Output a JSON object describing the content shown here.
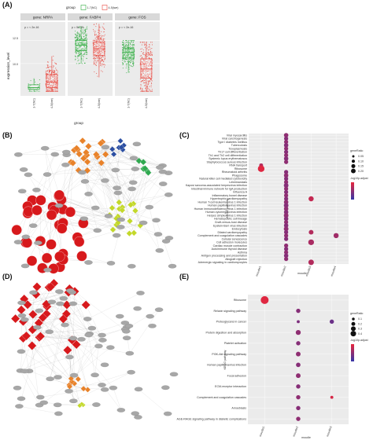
{
  "panels": {
    "A": "(A)",
    "B": "(B)",
    "C": "(C)",
    "D": "(D)",
    "E": "(E)"
  },
  "colors": {
    "group_a": "#2eaa3e",
    "group_b": "#e8453c",
    "strip_bg": "#d9d9d9",
    "panel_bg": "#ebebeb",
    "node_red": "#d7191c",
    "node_orange": "#e8822a",
    "node_blue": "#2b4ea2",
    "node_green": "#2fa84f",
    "node_yellow": "#c3d82a",
    "node_grey": "#a7a7a7",
    "ratio_high": "#e8263c",
    "ratio_low": "#3535a8"
  },
  "chart_data": [
    {
      "type": "box",
      "panel": "A",
      "legend": {
        "title": "group",
        "entries": [
          "1-7(NC)",
          "4-5(lwe)"
        ]
      },
      "ylabel": "expression_level",
      "xlabel": "group",
      "yticks": [
        "10.0",
        "12.5"
      ],
      "ylim": [
        6.5,
        14.5
      ],
      "facets": [
        {
          "title": "gene: NRPA",
          "pvalue": "p = < 2e-16",
          "categories": [
            "1-7(NC)",
            "4-5(lwe)"
          ],
          "boxes": [
            {
              "q1": 7.2,
              "median": 7.4,
              "q3": 7.7,
              "min": 7.0,
              "max": 8.4
            },
            {
              "q1": 7.4,
              "median": 8.0,
              "q3": 8.8,
              "min": 7.0,
              "max": 10.8
            }
          ]
        },
        {
          "title": "gene: FABP4",
          "pvalue": "p = 5e-05",
          "categories": [
            "1-7(NC)",
            "4-5(lwe)"
          ],
          "boxes": [
            {
              "q1": 11.4,
              "median": 12.0,
              "q3": 12.5,
              "min": 10.0,
              "max": 14.0
            },
            {
              "q1": 10.9,
              "median": 11.6,
              "q3": 12.3,
              "min": 8.5,
              "max": 14.3
            }
          ]
        },
        {
          "title": "gene: FOS",
          "pvalue": "p = < 2e-16",
          "categories": [
            "1-7(NC)",
            "4-5(lwe)"
          ],
          "boxes": [
            {
              "q1": 10.6,
              "median": 11.2,
              "q3": 11.6,
              "min": 9.0,
              "max": 12.5
            },
            {
              "q1": 8.4,
              "median": 9.4,
              "q3": 10.5,
              "min": 7.0,
              "max": 12.3
            }
          ]
        }
      ]
    },
    {
      "type": "scatter",
      "panel": "C",
      "ylabel": "KEGG pathway",
      "xlabel": "moudle",
      "categories": [
        "moudle1",
        "moudle2",
        "moudle3",
        "moudle4"
      ],
      "size_legend_title": "geneRatio",
      "size_legend": [
        "0.05",
        "0.10",
        "0.15",
        "0.20"
      ],
      "color_legend_title": "-log10p.adjust",
      "pathways": [
        "Viral myocarditis",
        "Viral carcinogenesis",
        "Type I diabetes mellitus",
        "Tuberculosis",
        "Toxoplasmosis",
        "Th17 cell differentiation",
        "Th1 and Th2 cell differentiation",
        "Systemic lupus erythematosus",
        "Staphylococcus aureus infection",
        "RNA transport",
        "Ribosome",
        "Rheumatoid arthritis",
        "Phagosome",
        "Natural killer cell mediated cytotoxicity",
        "Leishmaniasis",
        "Kaposi sarcoma-associated herpesvirus infection",
        "Intestinal immune network for IgA production",
        "Influenza A",
        "Inflammatory bowel disease",
        "Hypertrophic cardiomyopathy",
        "Human T-cell leukemia virus 1 infection",
        "Human papillomavirus infection",
        "Human immunodeficiency virus 1 infection",
        "Human cytomegalovirus infection",
        "Herpes simplex virus 1 infection",
        "Hematopoietic cell lineage",
        "Graft-versus-host disease",
        "Epstein-Barr virus infection",
        "Endocytosis",
        "Dilated cardiomyopathy",
        "Complement and coagulation cascades",
        "Cellular senescence",
        "Cell adhesion molecules",
        "Cardiac muscle contraction",
        "Autoimmune thyroid disease",
        "Asthma",
        "Antigen processing and presentation",
        "Allograft rejection",
        "Adrenergic signaling in cardiomyocytes"
      ],
      "points": [
        [
          1,
          0,
          0.09,
          0.5
        ],
        [
          1,
          1,
          0.08,
          0.45
        ],
        [
          1,
          2,
          0.08,
          0.5
        ],
        [
          1,
          3,
          0.09,
          0.45
        ],
        [
          1,
          4,
          0.08,
          0.5
        ],
        [
          1,
          5,
          0.08,
          0.45
        ],
        [
          1,
          6,
          0.08,
          0.5
        ],
        [
          1,
          7,
          0.09,
          0.45
        ],
        [
          1,
          8,
          0.08,
          0.5
        ],
        [
          0,
          9,
          0.07,
          0.7
        ],
        [
          0,
          10,
          0.2,
          0.95
        ],
        [
          1,
          11,
          0.08,
          0.45
        ],
        [
          1,
          12,
          0.09,
          0.5
        ],
        [
          1,
          13,
          0.08,
          0.45
        ],
        [
          1,
          14,
          0.08,
          0.5
        ],
        [
          1,
          15,
          0.1,
          0.45
        ],
        [
          1,
          16,
          0.08,
          0.5
        ],
        [
          1,
          17,
          0.08,
          0.45
        ],
        [
          1,
          18,
          0.08,
          0.5
        ],
        [
          1,
          19,
          0.08,
          0.45
        ],
        [
          2,
          19,
          0.12,
          0.8
        ],
        [
          1,
          20,
          0.09,
          0.5
        ],
        [
          1,
          21,
          0.1,
          0.45
        ],
        [
          1,
          22,
          0.09,
          0.5
        ],
        [
          1,
          23,
          0.09,
          0.45
        ],
        [
          1,
          24,
          0.1,
          0.5
        ],
        [
          1,
          25,
          0.09,
          0.45
        ],
        [
          1,
          26,
          0.08,
          0.5
        ],
        [
          1,
          27,
          0.09,
          0.45
        ],
        [
          1,
          28,
          0.1,
          0.5
        ],
        [
          1,
          29,
          0.08,
          0.45
        ],
        [
          2,
          29,
          0.1,
          0.7
        ],
        [
          3,
          30,
          0.12,
          0.6
        ],
        [
          1,
          30,
          0.08,
          0.5
        ],
        [
          1,
          31,
          0.08,
          0.45
        ],
        [
          2,
          32,
          0.15,
          0.65
        ],
        [
          1,
          33,
          0.08,
          0.5
        ],
        [
          1,
          34,
          0.08,
          0.45
        ],
        [
          1,
          35,
          0.08,
          0.5
        ],
        [
          1,
          36,
          0.09,
          0.45
        ],
        [
          1,
          37,
          0.08,
          0.5
        ],
        [
          2,
          38,
          0.14,
          0.7
        ]
      ]
    },
    {
      "type": "scatter",
      "panel": "E",
      "ylabel": "KEGG pathway",
      "xlabel": "moudle",
      "categories": [
        "moudle1",
        "moudle2",
        "moudle3"
      ],
      "size_legend_title": "geneRatio",
      "size_legend": [
        "0.1",
        "0.2",
        "0.3",
        "0.4"
      ],
      "color_legend_title": "-log10p.adjust",
      "pathways": [
        "Ribosome",
        "Relaxin signaling pathway",
        "Proteoglycans in cancer",
        "Protein digestion and absorption",
        "Platelet activation",
        "PI3K-Akt signaling pathway",
        "Human papillomavirus infection",
        "Focal adhesion",
        "ECM-receptor interaction",
        "Complement and coagulation cascades",
        "Amoebiasis",
        "AGE-RAGE signaling pathway in diabetic complications"
      ],
      "points": [
        [
          0,
          0,
          0.4,
          0.95
        ],
        [
          1,
          1,
          0.12,
          0.45
        ],
        [
          1,
          2,
          0.06,
          0.4
        ],
        [
          2,
          2,
          0.12,
          0.3
        ],
        [
          1,
          3,
          0.16,
          0.5
        ],
        [
          1,
          4,
          0.12,
          0.45
        ],
        [
          1,
          5,
          0.14,
          0.5
        ],
        [
          1,
          6,
          0.13,
          0.45
        ],
        [
          1,
          7,
          0.14,
          0.5
        ],
        [
          1,
          8,
          0.12,
          0.45
        ],
        [
          1,
          9,
          0.12,
          0.5
        ],
        [
          2,
          9,
          0.06,
          0.9
        ],
        [
          1,
          10,
          0.12,
          0.45
        ],
        [
          1,
          11,
          0.12,
          0.5
        ]
      ]
    }
  ]
}
